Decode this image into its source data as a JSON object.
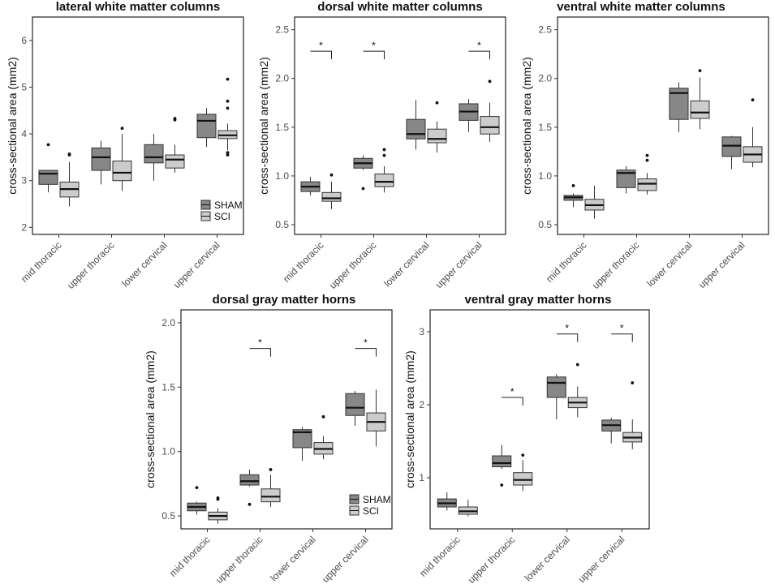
{
  "colors": {
    "sham": "#878787",
    "sci": "#cccccc",
    "stroke": "#333333"
  },
  "legend": {
    "sham_label": "SHAM",
    "sci_label": "SCI"
  },
  "chart_data": [
    {
      "type": "boxplot",
      "title": "lateral white matter columns",
      "ylabel": "cross-sectional area (mm2)",
      "categories": [
        "mid thoracic",
        "upper thoracic",
        "lower cervical",
        "upper cervical"
      ],
      "ylim": [
        1.85,
        6.5
      ],
      "yticks": [
        2,
        3,
        4,
        5,
        6
      ],
      "legend": true,
      "series": [
        {
          "name": "SHAM",
          "boxes": [
            {
              "min": 2.75,
              "q1": 2.92,
              "median": 3.15,
              "q3": 3.22,
              "max": 3.22,
              "outliers": [
                3.77
              ]
            },
            {
              "min": 2.92,
              "q1": 3.22,
              "median": 3.5,
              "q3": 3.7,
              "max": 3.85,
              "outliers": []
            },
            {
              "min": 3.0,
              "q1": 3.38,
              "median": 3.5,
              "q3": 3.77,
              "max": 4.0,
              "outliers": []
            },
            {
              "min": 3.72,
              "q1": 3.92,
              "median": 4.28,
              "q3": 4.42,
              "max": 4.55,
              "outliers": []
            }
          ]
        },
        {
          "name": "SCI",
          "boxes": [
            {
              "min": 2.45,
              "q1": 2.65,
              "median": 2.82,
              "q3": 2.97,
              "max": 3.4,
              "outliers": [
                3.55,
                3.57
              ]
            },
            {
              "min": 2.78,
              "q1": 3.0,
              "median": 3.17,
              "q3": 3.42,
              "max": 4.0,
              "outliers": [
                4.12
              ]
            },
            {
              "min": 3.17,
              "q1": 3.27,
              "median": 3.45,
              "q3": 3.55,
              "max": 3.77,
              "outliers": [
                4.3,
                4.33
              ]
            },
            {
              "min": 3.65,
              "q1": 3.9,
              "median": 3.97,
              "q3": 4.07,
              "max": 4.22,
              "outliers": [
                3.55,
                3.6,
                4.55,
                4.7,
                5.17
              ]
            }
          ]
        }
      ],
      "significance": []
    },
    {
      "type": "boxplot",
      "title": "dorsal white matter columns",
      "ylabel": "cross-sectional area (mm2)",
      "categories": [
        "mid thoracic",
        "upper thoracic",
        "lower cervical",
        "upper cervical"
      ],
      "ylim": [
        0.4,
        2.63
      ],
      "yticks": [
        0.5,
        1.0,
        1.5,
        2.0,
        2.5
      ],
      "legend": false,
      "series": [
        {
          "name": "SHAM",
          "boxes": [
            {
              "min": 0.8,
              "q1": 0.84,
              "median": 0.89,
              "q3": 0.94,
              "max": 0.99,
              "outliers": []
            },
            {
              "min": 1.06,
              "q1": 1.08,
              "median": 1.13,
              "q3": 1.18,
              "max": 1.21,
              "outliers": [
                0.87
              ]
            },
            {
              "min": 1.27,
              "q1": 1.38,
              "median": 1.43,
              "q3": 1.58,
              "max": 1.78,
              "outliers": []
            },
            {
              "min": 1.45,
              "q1": 1.57,
              "median": 1.66,
              "q3": 1.74,
              "max": 1.79,
              "outliers": []
            }
          ]
        },
        {
          "name": "SCI",
          "boxes": [
            {
              "min": 0.66,
              "q1": 0.74,
              "median": 0.77,
              "q3": 0.83,
              "max": 0.94,
              "outliers": [
                1.01
              ]
            },
            {
              "min": 0.83,
              "q1": 0.89,
              "median": 0.94,
              "q3": 1.02,
              "max": 1.1,
              "outliers": [
                1.21,
                1.27
              ]
            },
            {
              "min": 1.24,
              "q1": 1.34,
              "median": 1.38,
              "q3": 1.48,
              "max": 1.56,
              "outliers": [
                1.75
              ]
            },
            {
              "min": 1.35,
              "q1": 1.43,
              "median": 1.5,
              "q3": 1.61,
              "max": 1.75,
              "outliers": [
                1.97
              ]
            }
          ]
        }
      ],
      "significance": [
        {
          "category": 0,
          "y": 2.28,
          "label": "*"
        },
        {
          "category": 1,
          "y": 2.28,
          "label": "*"
        },
        {
          "category": 3,
          "y": 2.28,
          "label": "*"
        }
      ]
    },
    {
      "type": "boxplot",
      "title": "ventral white matter columns",
      "ylabel": "cross-sectional area (mm2)",
      "categories": [
        "mid thoracic",
        "upper thoracic",
        "lower cervical",
        "upper cervical"
      ],
      "ylim": [
        0.4,
        2.63
      ],
      "yticks": [
        0.5,
        1.0,
        1.5,
        2.0,
        2.5
      ],
      "legend": false,
      "series": [
        {
          "name": "SHAM",
          "boxes": [
            {
              "min": 0.68,
              "q1": 0.75,
              "median": 0.78,
              "q3": 0.8,
              "max": 0.82,
              "outliers": [
                0.9
              ]
            },
            {
              "min": 0.82,
              "q1": 0.88,
              "median": 1.03,
              "q3": 1.06,
              "max": 1.1,
              "outliers": []
            },
            {
              "min": 1.45,
              "q1": 1.58,
              "median": 1.85,
              "q3": 1.9,
              "max": 1.96,
              "outliers": []
            },
            {
              "min": 1.07,
              "q1": 1.2,
              "median": 1.31,
              "q3": 1.4,
              "max": 1.41,
              "outliers": []
            }
          ]
        },
        {
          "name": "SCI",
          "boxes": [
            {
              "min": 0.56,
              "q1": 0.65,
              "median": 0.7,
              "q3": 0.76,
              "max": 0.9,
              "outliers": []
            },
            {
              "min": 0.81,
              "q1": 0.85,
              "median": 0.92,
              "q3": 0.97,
              "max": 1.03,
              "outliers": [
                1.16,
                1.21
              ]
            },
            {
              "min": 1.48,
              "q1": 1.59,
              "median": 1.65,
              "q3": 1.77,
              "max": 2.01,
              "outliers": [
                2.08
              ]
            },
            {
              "min": 1.09,
              "q1": 1.14,
              "median": 1.22,
              "q3": 1.3,
              "max": 1.5,
              "outliers": [
                1.78
              ]
            }
          ]
        }
      ],
      "significance": []
    },
    {
      "type": "boxplot",
      "title": "dorsal gray matter horns",
      "ylabel": "cross-sectional area (mm2)",
      "categories": [
        "mid thoracic",
        "upper thoracic",
        "lower cervical",
        "upper cervical"
      ],
      "ylim": [
        0.4,
        2.1
      ],
      "yticks": [
        0.5,
        1.0,
        1.5,
        2.0
      ],
      "legend": true,
      "series": [
        {
          "name": "SHAM",
          "boxes": [
            {
              "min": 0.51,
              "q1": 0.54,
              "median": 0.57,
              "q3": 0.6,
              "max": 0.61,
              "outliers": [
                0.72
              ]
            },
            {
              "min": 0.73,
              "q1": 0.74,
              "median": 0.77,
              "q3": 0.82,
              "max": 0.86,
              "outliers": [
                0.59
              ]
            },
            {
              "min": 0.93,
              "q1": 1.03,
              "median": 1.15,
              "q3": 1.17,
              "max": 1.19,
              "outliers": []
            },
            {
              "min": 1.2,
              "q1": 1.28,
              "median": 1.34,
              "q3": 1.45,
              "max": 1.47,
              "outliers": []
            }
          ]
        },
        {
          "name": "SCI",
          "boxes": [
            {
              "min": 0.44,
              "q1": 0.47,
              "median": 0.5,
              "q3": 0.53,
              "max": 0.56,
              "outliers": [
                0.63,
                0.64
              ]
            },
            {
              "min": 0.57,
              "q1": 0.61,
              "median": 0.65,
              "q3": 0.71,
              "max": 0.82,
              "outliers": [
                0.86
              ]
            },
            {
              "min": 0.94,
              "q1": 0.98,
              "median": 1.02,
              "q3": 1.07,
              "max": 1.12,
              "outliers": [
                1.27
              ]
            },
            {
              "min": 1.04,
              "q1": 1.16,
              "median": 1.23,
              "q3": 1.3,
              "max": 1.48,
              "outliers": []
            }
          ]
        }
      ],
      "significance": [
        {
          "category": 1,
          "y": 1.8,
          "label": "*"
        },
        {
          "category": 3,
          "y": 1.8,
          "label": "*"
        }
      ]
    },
    {
      "type": "boxplot",
      "title": "ventral gray matter horns",
      "ylabel": "cross-sectional area (mm2)",
      "categories": [
        "mid thoracic",
        "upper thoracic",
        "lower cervical",
        "upper cervical"
      ],
      "ylim": [
        0.3,
        3.3
      ],
      "yticks": [
        1,
        2,
        3
      ],
      "legend": false,
      "series": [
        {
          "name": "SHAM",
          "boxes": [
            {
              "min": 0.55,
              "q1": 0.6,
              "median": 0.65,
              "q3": 0.71,
              "max": 0.8,
              "outliers": []
            },
            {
              "min": 1.12,
              "q1": 1.15,
              "median": 1.2,
              "q3": 1.3,
              "max": 1.45,
              "outliers": [
                0.9
              ]
            },
            {
              "min": 1.8,
              "q1": 2.1,
              "median": 2.3,
              "q3": 2.38,
              "max": 2.42,
              "outliers": []
            },
            {
              "min": 1.47,
              "q1": 1.64,
              "median": 1.72,
              "q3": 1.79,
              "max": 1.82,
              "outliers": []
            }
          ]
        },
        {
          "name": "SCI",
          "boxes": [
            {
              "min": 0.47,
              "q1": 0.5,
              "median": 0.54,
              "q3": 0.6,
              "max": 0.7,
              "outliers": []
            },
            {
              "min": 0.82,
              "q1": 0.9,
              "median": 0.97,
              "q3": 1.07,
              "max": 1.24,
              "outliers": [
                1.31
              ]
            },
            {
              "min": 1.83,
              "q1": 1.96,
              "median": 2.03,
              "q3": 2.1,
              "max": 2.25,
              "outliers": [
                2.55
              ]
            },
            {
              "min": 1.39,
              "q1": 1.49,
              "median": 1.55,
              "q3": 1.62,
              "max": 1.8,
              "outliers": [
                2.3
              ]
            }
          ]
        }
      ],
      "significance": [
        {
          "category": 1,
          "y": 2.1,
          "label": "*"
        },
        {
          "category": 2,
          "y": 2.97,
          "label": "*"
        },
        {
          "category": 3,
          "y": 2.97,
          "label": "*"
        }
      ]
    }
  ]
}
